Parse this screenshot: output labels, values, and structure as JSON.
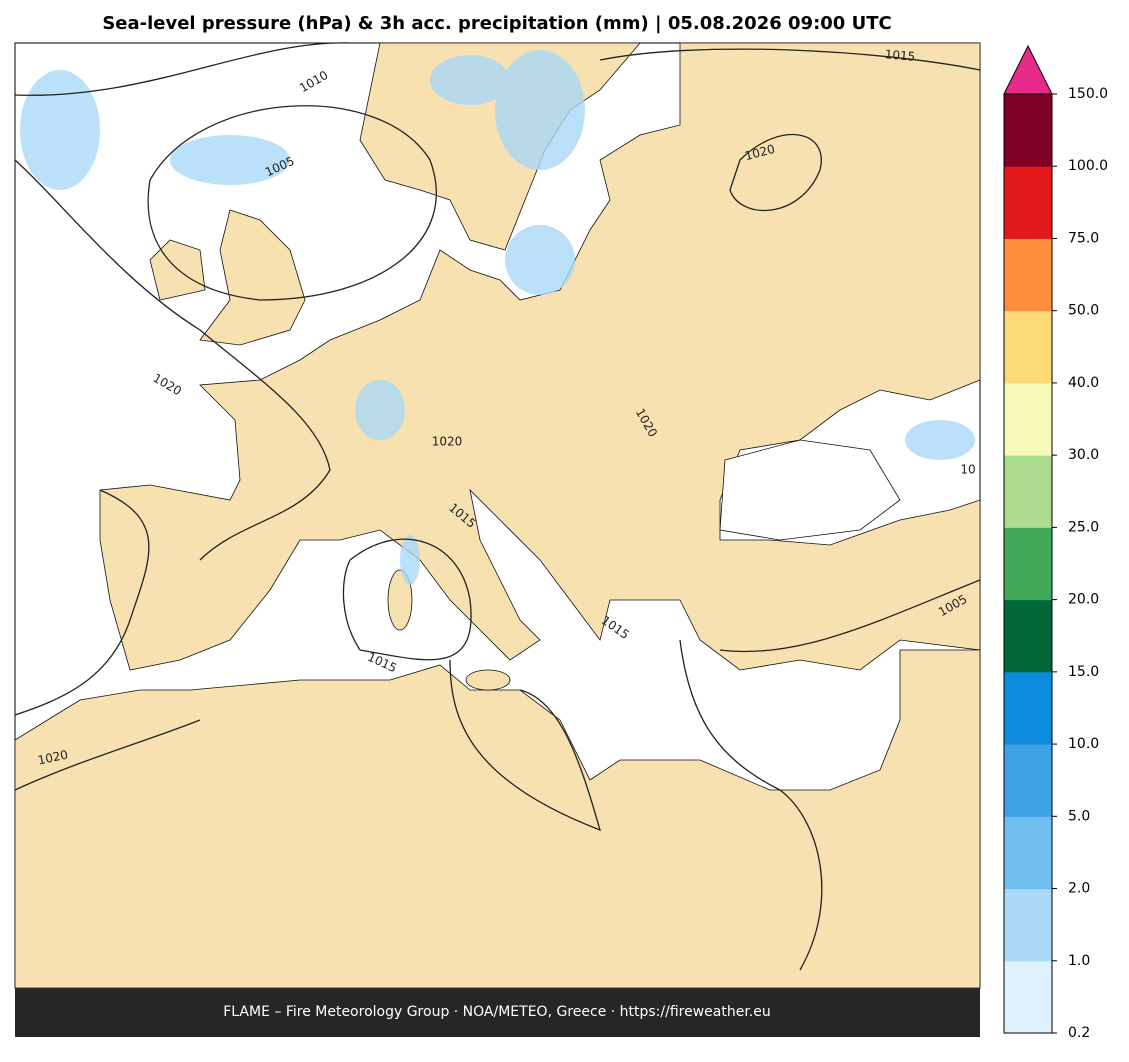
{
  "title": "Sea-level pressure (hPa) & 3h acc. precipitation (mm)  |  05.08.2026 09:00 UTC",
  "colorbar": {
    "ticks": [
      "0.2",
      "1.0",
      "2.0",
      "5.0",
      "10.0",
      "15.0",
      "20.0",
      "25.0",
      "30.0",
      "40.0",
      "50.0",
      "75.0",
      "100.0",
      "150.0"
    ],
    "colors": [
      "#ddf1fd",
      "#a9d9f7",
      "#70bdef",
      "#40a2e6",
      "#0d8cde",
      "#006837",
      "#41a85a",
      "#acdc8d",
      "#f7fab9",
      "#fed977",
      "#fd8d3c",
      "#e31a1c",
      "#800026"
    ],
    "extend_color": "#e7298a"
  },
  "contour_labels": [
    "1015",
    "1010",
    "1005",
    "1020",
    "1020",
    "1020",
    "1020",
    "1015",
    "1015",
    "1015",
    "1005",
    "1020",
    "10"
  ],
  "footer": "FLAME – Fire Meteorology Group · NOA/METEO, Greece · https://fireweather.eu"
}
